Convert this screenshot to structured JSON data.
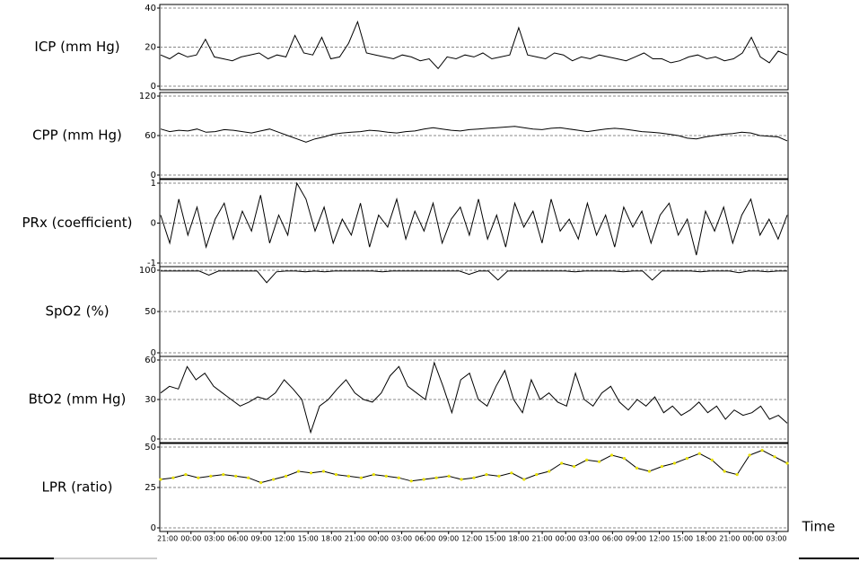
{
  "chart_data": [
    {
      "type": "line",
      "ylabel": "ICP (mm Hg)",
      "ylim": [
        0,
        40
      ],
      "yticks": [
        0,
        20,
        40
      ],
      "grid": true,
      "color": "#000000",
      "values": [
        16,
        14,
        17,
        15,
        16,
        24,
        15,
        14,
        13,
        15,
        16,
        17,
        14,
        16,
        15,
        26,
        17,
        16,
        25,
        14,
        15,
        22,
        33,
        17,
        16,
        15,
        14,
        16,
        15,
        13,
        14,
        9,
        15,
        14,
        16,
        15,
        17,
        14,
        15,
        16,
        30,
        16,
        15,
        14,
        17,
        16,
        13,
        15,
        14,
        16,
        15,
        14,
        13,
        15,
        17,
        14,
        14,
        12,
        13,
        15,
        16,
        14,
        15,
        13,
        14,
        17,
        25,
        15,
        12,
        18,
        16
      ]
    },
    {
      "type": "line",
      "ylabel": "CPP (mm Hg)",
      "ylim": [
        0,
        120
      ],
      "yticks": [
        0,
        60,
        120
      ],
      "grid": true,
      "color": "#000000",
      "values": [
        70,
        66,
        68,
        67,
        70,
        65,
        66,
        69,
        68,
        66,
        64,
        67,
        70,
        65,
        60,
        55,
        50,
        55,
        58,
        62,
        64,
        65,
        66,
        68,
        67,
        65,
        64,
        66,
        67,
        70,
        72,
        70,
        68,
        67,
        69,
        70,
        71,
        72,
        73,
        74,
        72,
        70,
        69,
        71,
        72,
        70,
        68,
        66,
        68,
        70,
        71,
        70,
        68,
        66,
        65,
        64,
        62,
        60,
        56,
        55,
        58,
        60,
        62,
        63,
        65,
        64,
        60,
        59,
        58,
        52
      ]
    },
    {
      "type": "line",
      "ylabel": "PRx (coefficient)",
      "ylim": [
        -1,
        1
      ],
      "yticks": [
        -1,
        0,
        1
      ],
      "grid": true,
      "color": "#000000",
      "values": [
        0.2,
        -0.5,
        0.6,
        -0.3,
        0.4,
        -0.6,
        0.1,
        0.5,
        -0.4,
        0.3,
        -0.2,
        0.7,
        -0.5,
        0.2,
        -0.3,
        1.0,
        0.6,
        -0.2,
        0.4,
        -0.5,
        0.1,
        -0.3,
        0.5,
        -0.6,
        0.2,
        -0.1,
        0.6,
        -0.4,
        0.3,
        -0.2,
        0.5,
        -0.5,
        0.1,
        0.4,
        -0.3,
        0.6,
        -0.4,
        0.2,
        -0.6,
        0.5,
        -0.1,
        0.3,
        -0.5,
        0.6,
        -0.2,
        0.1,
        -0.4,
        0.5,
        -0.3,
        0.2,
        -0.6,
        0.4,
        -0.1,
        0.3,
        -0.5,
        0.2,
        0.5,
        -0.3,
        0.1,
        -0.8,
        0.3,
        -0.2,
        0.4,
        -0.5,
        0.2,
        0.6,
        -0.3,
        0.1,
        -0.4,
        0.2
      ]
    },
    {
      "type": "line",
      "ylabel": "SpO2 (%)",
      "ylim": [
        0,
        100
      ],
      "yticks": [
        0,
        50,
        100
      ],
      "grid": true,
      "color": "#000000",
      "values": [
        99,
        99,
        99,
        99,
        99,
        94,
        99,
        99,
        99,
        99,
        99,
        85,
        98,
        99,
        99,
        98,
        99,
        98,
        99,
        99,
        99,
        99,
        99,
        98,
        99,
        99,
        99,
        99,
        99,
        99,
        99,
        99,
        95,
        99,
        99,
        88,
        99,
        99,
        99,
        99,
        99,
        99,
        99,
        98,
        99,
        99,
        99,
        99,
        98,
        99,
        99,
        88,
        99,
        99,
        99,
        99,
        98,
        99,
        99,
        99,
        97,
        99,
        99,
        98,
        99,
        99
      ]
    },
    {
      "type": "line",
      "ylabel": "BtO2 (mm Hg)",
      "ylim": [
        0,
        60
      ],
      "yticks": [
        0,
        30,
        60
      ],
      "grid": true,
      "color": "#000000",
      "values": [
        35,
        40,
        38,
        55,
        45,
        50,
        40,
        35,
        30,
        25,
        28,
        32,
        30,
        35,
        45,
        38,
        30,
        5,
        25,
        30,
        38,
        45,
        35,
        30,
        28,
        35,
        48,
        55,
        40,
        35,
        30,
        58,
        40,
        20,
        45,
        50,
        30,
        25,
        40,
        52,
        30,
        20,
        45,
        30,
        35,
        28,
        25,
        50,
        30,
        25,
        35,
        40,
        28,
        22,
        30,
        25,
        32,
        20,
        25,
        18,
        22,
        28,
        20,
        25,
        15,
        22,
        18,
        20,
        25,
        15,
        18,
        12
      ]
    },
    {
      "type": "line",
      "ylabel": "LPR (ratio)",
      "ylim": [
        0,
        50
      ],
      "yticks": [
        0,
        25,
        50
      ],
      "grid": true,
      "color": "#000000",
      "marker_color": "#e8e000",
      "values": [
        30,
        31,
        33,
        31,
        32,
        33,
        32,
        31,
        28,
        30,
        32,
        35,
        34,
        35,
        33,
        32,
        31,
        33,
        32,
        31,
        29,
        30,
        31,
        32,
        30,
        31,
        33,
        32,
        34,
        30,
        33,
        35,
        40,
        38,
        42,
        41,
        45,
        43,
        37,
        35,
        38,
        40,
        43,
        46,
        42,
        35,
        33,
        45,
        48,
        44,
        40
      ],
      "xlabel": "Time",
      "xlim": [
        -1,
        79.5
      ],
      "xticks": [
        {
          "value": 0,
          "label": "21:00"
        },
        {
          "value": 3,
          "label": "00:00"
        },
        {
          "value": 6,
          "label": "03:00"
        },
        {
          "value": 9,
          "label": "06:00"
        },
        {
          "value": 12,
          "label": "09:00"
        },
        {
          "value": 15,
          "label": "12:00"
        },
        {
          "value": 18,
          "label": "15:00"
        },
        {
          "value": 21,
          "label": "18:00"
        },
        {
          "value": 24,
          "label": "21:00"
        },
        {
          "value": 27,
          "label": "00:00"
        },
        {
          "value": 30,
          "label": "03:00"
        },
        {
          "value": 33,
          "label": "06:00"
        },
        {
          "value": 36,
          "label": "09:00"
        },
        {
          "value": 39,
          "label": "12:00"
        },
        {
          "value": 42,
          "label": "15:00"
        },
        {
          "value": 45,
          "label": "18:00"
        },
        {
          "value": 48,
          "label": "21:00"
        },
        {
          "value": 51,
          "label": "00:00"
        },
        {
          "value": 54,
          "label": "03:00"
        },
        {
          "value": 57,
          "label": "06:00"
        },
        {
          "value": 60,
          "label": "09:00"
        },
        {
          "value": 63,
          "label": "12:00"
        },
        {
          "value": 66,
          "label": "15:00"
        },
        {
          "value": 69,
          "label": "18:00"
        },
        {
          "value": 72,
          "label": "21:00"
        },
        {
          "value": 75,
          "label": "00:00"
        },
        {
          "value": 78,
          "label": "03:00"
        }
      ]
    }
  ]
}
